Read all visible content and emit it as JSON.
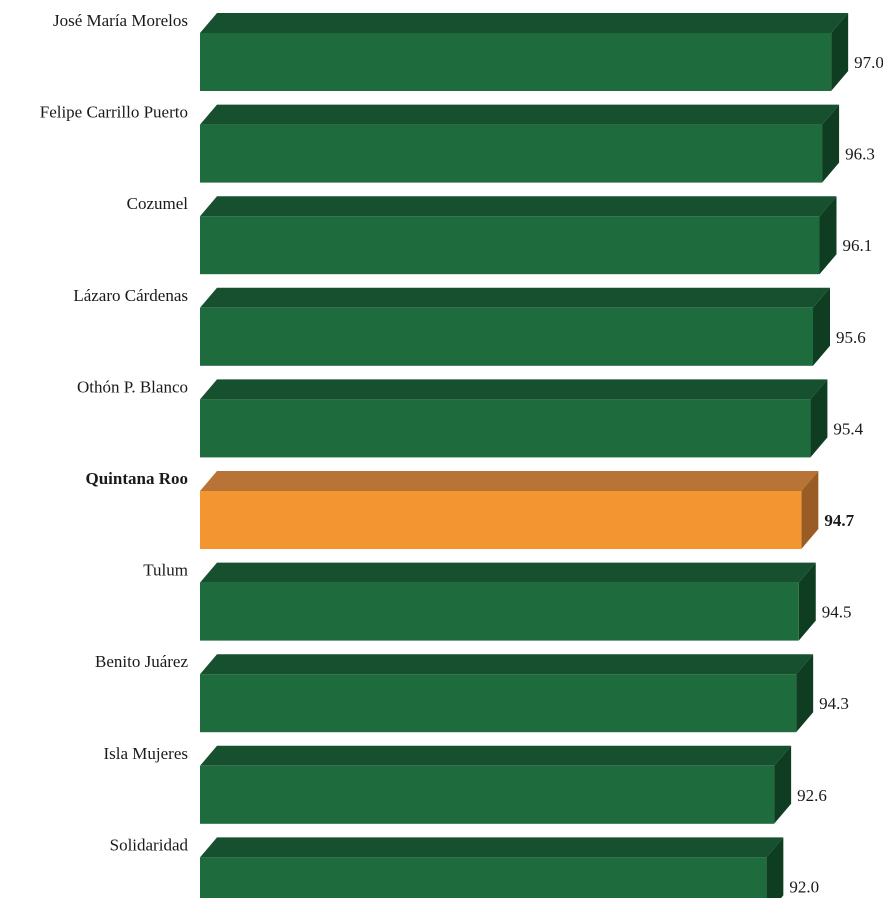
{
  "chart_data": {
    "type": "bar",
    "orientation": "horizontal",
    "style": "3d",
    "categories": [
      "José María Morelos",
      "Felipe Carrillo Puerto",
      "Cozumel",
      "Lázaro Cárdenas",
      "Othón P.  Blanco",
      "Quintana Roo",
      "Tulum",
      "Benito Juárez",
      "Isla Mujeres",
      "Solidaridad"
    ],
    "values": [
      97.0,
      96.3,
      96.1,
      95.6,
      95.4,
      94.7,
      94.5,
      94.3,
      92.6,
      92.0
    ],
    "value_labels": [
      "97.0",
      "96.3",
      "96.1",
      "95.6",
      "95.4",
      "94.7",
      "94.5",
      "94.3",
      "92.6",
      "92.0"
    ],
    "highlight": "Quintana Roo",
    "colors": {
      "bar_front": "#1e6b3e",
      "bar_top": "#17502e",
      "bar_side": "#0e3d22",
      "highlight_front": "#f39632",
      "highlight_top": "#b87436",
      "highlight_side": "#9a5c25"
    },
    "title": "",
    "xlabel": "",
    "ylabel": "",
    "grid": false,
    "legend": "none"
  }
}
